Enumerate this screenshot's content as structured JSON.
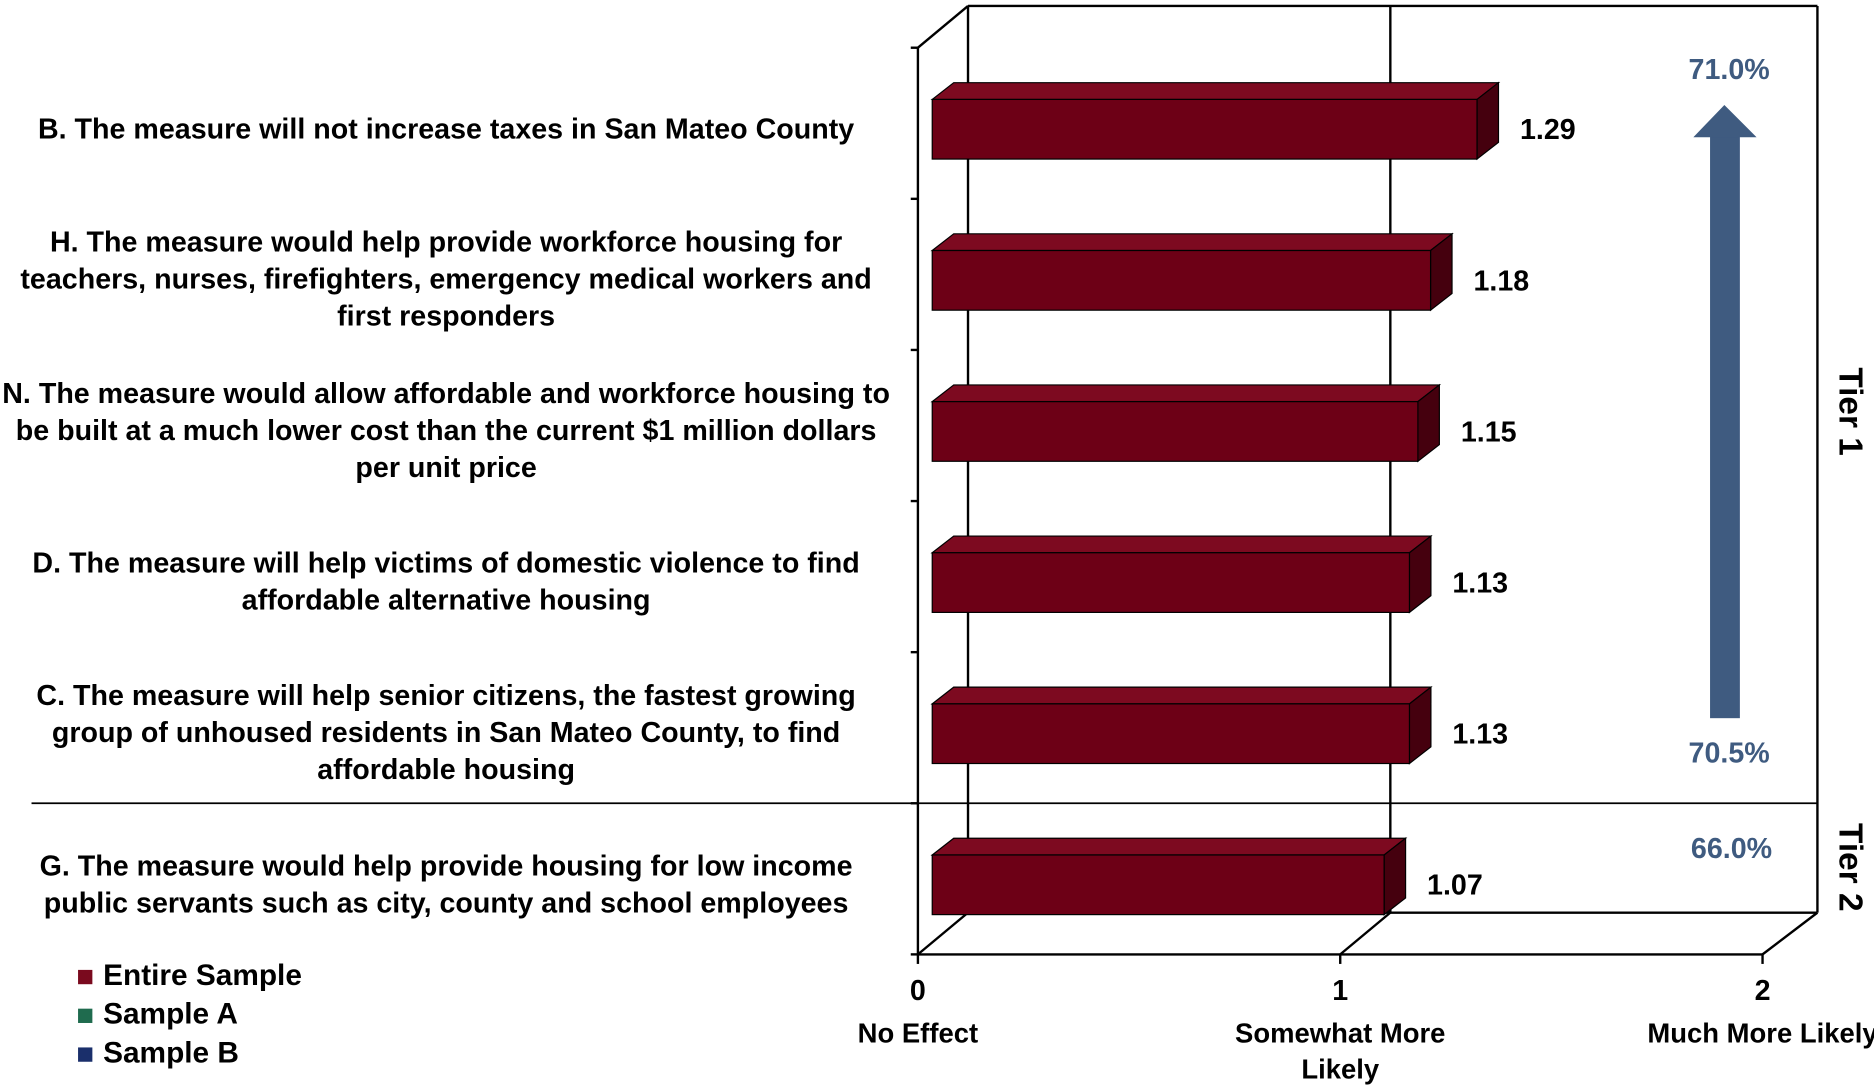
{
  "chart_data": {
    "type": "bar3d_horizontal",
    "categories": [
      "B. The measure will not increase taxes in San Mateo County",
      "H. The measure would help provide workforce housing for teachers, nurses, firefighters, emergency medical workers and first responders",
      "N. The measure would allow affordable and workforce housing to be built at a much lower cost than the current $1 million dollars per unit price",
      "D. The measure will help victims of domestic violence to find affordable alternative housing",
      "C. The measure will help senior citizens, the fastest growing group of unhoused residents in San Mateo County, to find affordable housing",
      "G. The measure would help provide housing for low income public servants such as city, county and school employees"
    ],
    "series": [
      {
        "name": "Entire Sample",
        "color": "#6d0016",
        "values": [
          1.29,
          1.18,
          1.15,
          1.13,
          1.13,
          1.07
        ]
      }
    ],
    "legend": [
      {
        "name": "Entire Sample",
        "color": "#7a0a1e"
      },
      {
        "name": "Sample A",
        "color": "#1f6b4e"
      },
      {
        "name": "Sample B",
        "color": "#1a2f6b"
      }
    ],
    "xlim": [
      0,
      2
    ],
    "xticks": [
      0,
      1,
      2
    ],
    "xtick_descriptions": [
      "No Effect",
      "Somewhat More Likely",
      "Much More Likely"
    ],
    "annotations": [
      {
        "text": "71.0%"
      },
      {
        "text": "70.5%"
      },
      {
        "text": "66.0%"
      }
    ],
    "tiers": [
      "Tier 1",
      "Tier 2"
    ],
    "arrow_color": "#3f5b80"
  }
}
